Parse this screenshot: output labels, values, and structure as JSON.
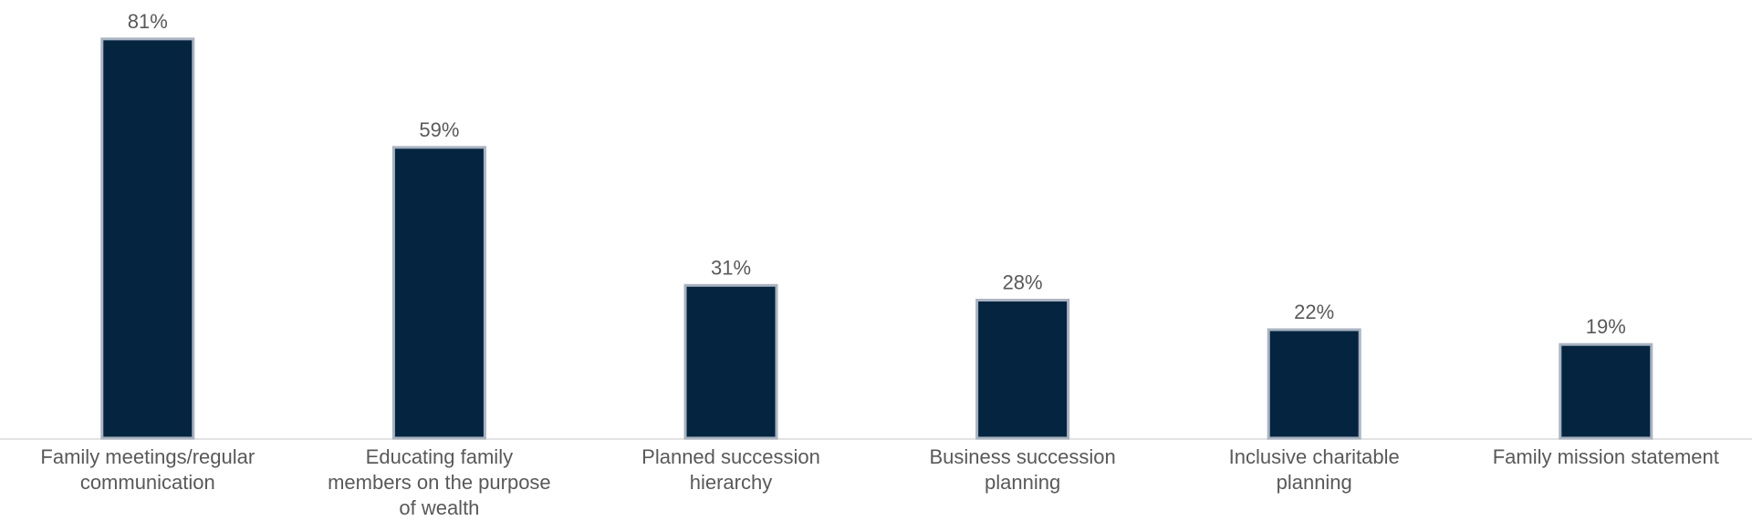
{
  "chart_data": {
    "type": "bar",
    "categories": [
      "Family meetings/regular communication",
      "Educating family members on the purpose of wealth",
      "Planned succession hierarchy",
      "Business succession planning",
      "Inclusive charitable planning",
      "Family mission statement"
    ],
    "values": [
      81,
      59,
      31,
      28,
      22,
      19
    ],
    "value_labels": [
      "81%",
      "59%",
      "31%",
      "28%",
      "22%",
      "19%"
    ],
    "color": "#042440"
  }
}
